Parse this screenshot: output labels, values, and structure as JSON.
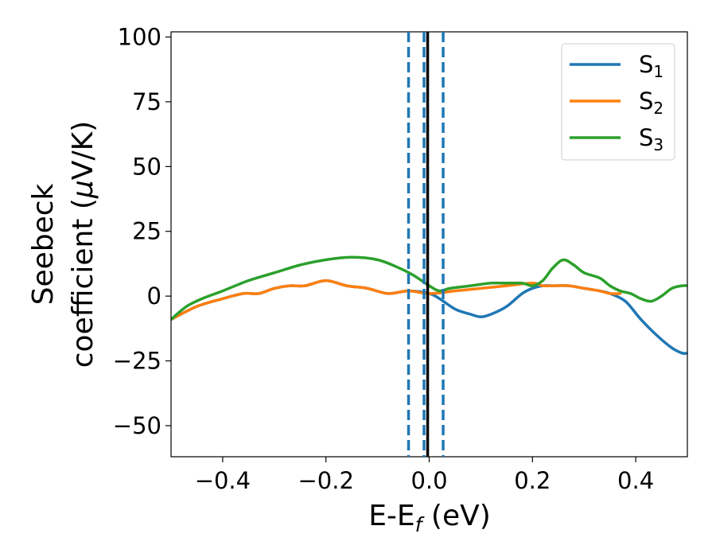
{
  "chart_data": {
    "type": "line",
    "xlabel": {
      "base": "E-E",
      "sub": "f",
      "unit": " (eV)"
    },
    "ylabel": {
      "line1": "Seebeck",
      "line2_prefix": "coefficient  (",
      "mu": "μ",
      "line2_suffix": "V/K)"
    },
    "xlim": [
      -0.5,
      0.5
    ],
    "ylim": [
      -62,
      102
    ],
    "x_ticks": [
      -0.4,
      -0.2,
      0.0,
      0.2,
      0.4
    ],
    "x_tick_labels": [
      "−0.4",
      "−0.2",
      "0.0",
      "0.2",
      "0.4"
    ],
    "y_ticks": [
      -50,
      -25,
      0,
      25,
      50,
      75,
      100
    ],
    "y_tick_labels": [
      "−50",
      "−25",
      "0",
      "25",
      "50",
      "75",
      "100"
    ],
    "grid": false,
    "legend_position": "top-right",
    "vertical_lines": [
      {
        "x": -0.04,
        "style": "dashed",
        "color": "#1f77b4"
      },
      {
        "x": -0.01,
        "style": "dashed",
        "color": "#1f77b4"
      },
      {
        "x": 0.027,
        "style": "dashed",
        "color": "#1f77b4"
      },
      {
        "x": -0.003,
        "style": "solid",
        "color": "#000000"
      }
    ],
    "series": [
      {
        "name": "S",
        "sub": "1",
        "color": "#1f77b4",
        "points": [
          [
            -0.5,
            -9
          ],
          [
            -0.45,
            -4
          ],
          [
            -0.4,
            -1
          ],
          [
            -0.36,
            1
          ],
          [
            -0.33,
            1
          ],
          [
            -0.3,
            3
          ],
          [
            -0.27,
            4
          ],
          [
            -0.24,
            4
          ],
          [
            -0.2,
            6
          ],
          [
            -0.16,
            4
          ],
          [
            -0.12,
            3
          ],
          [
            -0.08,
            1
          ],
          [
            -0.04,
            2
          ],
          [
            0.0,
            1
          ],
          [
            0.02,
            -1
          ],
          [
            0.05,
            -5
          ],
          [
            0.08,
            -7
          ],
          [
            0.1,
            -8
          ],
          [
            0.12,
            -7
          ],
          [
            0.15,
            -4
          ],
          [
            0.18,
            1
          ],
          [
            0.2,
            3
          ],
          [
            0.22,
            4
          ],
          [
            0.24,
            4
          ],
          [
            0.27,
            4
          ],
          [
            0.3,
            3
          ],
          [
            0.33,
            2
          ],
          [
            0.35,
            1
          ],
          [
            0.38,
            -2
          ],
          [
            0.41,
            -9
          ],
          [
            0.44,
            -15
          ],
          [
            0.47,
            -20
          ],
          [
            0.49,
            -22
          ],
          [
            0.5,
            -22
          ]
        ]
      },
      {
        "name": "S",
        "sub": "2",
        "color": "#ff7f0e",
        "points": [
          [
            -0.5,
            -9
          ],
          [
            -0.45,
            -4
          ],
          [
            -0.4,
            -1
          ],
          [
            -0.36,
            1
          ],
          [
            -0.33,
            1
          ],
          [
            -0.3,
            3
          ],
          [
            -0.27,
            4
          ],
          [
            -0.24,
            4
          ],
          [
            -0.2,
            6
          ],
          [
            -0.16,
            4
          ],
          [
            -0.12,
            3
          ],
          [
            -0.08,
            1
          ],
          [
            -0.04,
            2
          ],
          [
            0.0,
            1
          ],
          [
            0.05,
            2
          ],
          [
            0.1,
            3
          ],
          [
            0.15,
            4
          ],
          [
            0.2,
            5
          ],
          [
            0.22,
            4
          ],
          [
            0.24,
            4
          ],
          [
            0.27,
            4
          ],
          [
            0.3,
            3
          ],
          [
            0.33,
            2
          ],
          [
            0.35,
            1
          ],
          [
            0.37,
            1
          ]
        ]
      },
      {
        "name": "S",
        "sub": "3",
        "color": "#2ca02c",
        "points": [
          [
            -0.5,
            -9
          ],
          [
            -0.47,
            -4
          ],
          [
            -0.44,
            -1
          ],
          [
            -0.4,
            2
          ],
          [
            -0.35,
            6
          ],
          [
            -0.3,
            9
          ],
          [
            -0.25,
            12
          ],
          [
            -0.2,
            14
          ],
          [
            -0.15,
            15
          ],
          [
            -0.1,
            14
          ],
          [
            -0.06,
            11
          ],
          [
            -0.03,
            8
          ],
          [
            0.0,
            4
          ],
          [
            0.02,
            2
          ],
          [
            0.04,
            3
          ],
          [
            0.08,
            4
          ],
          [
            0.12,
            5
          ],
          [
            0.15,
            5
          ],
          [
            0.18,
            5
          ],
          [
            0.2,
            4
          ],
          [
            0.22,
            6
          ],
          [
            0.24,
            11
          ],
          [
            0.26,
            14
          ],
          [
            0.28,
            12
          ],
          [
            0.3,
            9
          ],
          [
            0.33,
            7
          ],
          [
            0.35,
            4
          ],
          [
            0.37,
            2
          ],
          [
            0.39,
            1
          ],
          [
            0.41,
            -1
          ],
          [
            0.43,
            -2
          ],
          [
            0.45,
            0
          ],
          [
            0.47,
            3
          ],
          [
            0.49,
            4
          ],
          [
            0.5,
            4
          ]
        ]
      }
    ]
  }
}
